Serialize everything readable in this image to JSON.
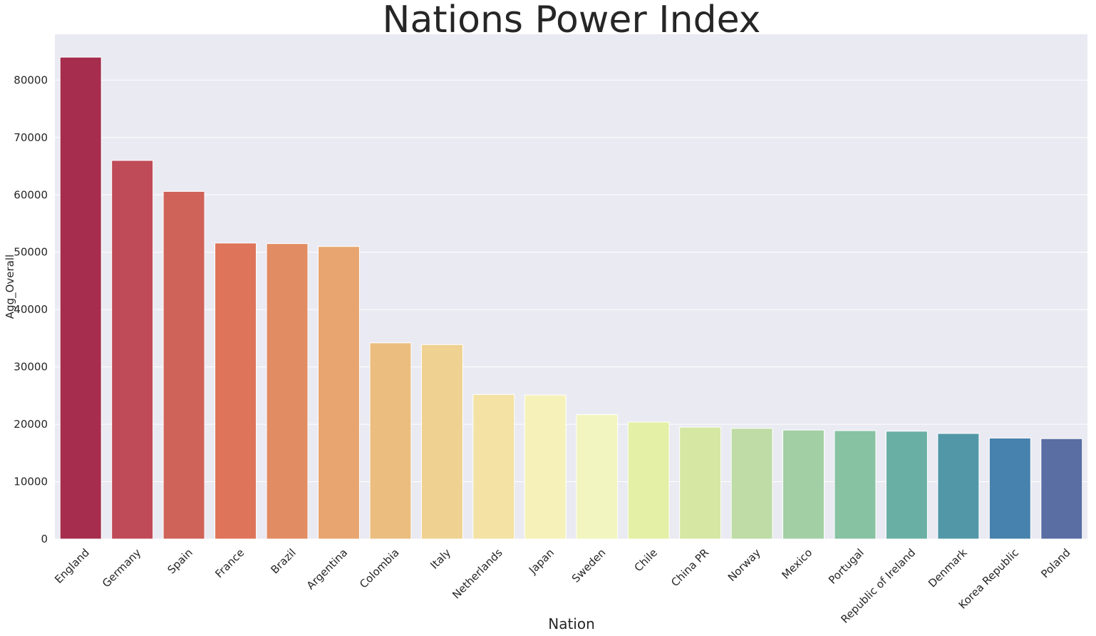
{
  "chart_data": {
    "type": "bar",
    "title": "Nations Power Index",
    "xlabel": "Nation",
    "ylabel": "Agg_Overall",
    "ylim": [
      0,
      88000
    ],
    "yticks": [
      0,
      10000,
      20000,
      30000,
      40000,
      50000,
      60000,
      70000,
      80000
    ],
    "grid": "horizontal",
    "background_color": "#eaeaf2",
    "categories": [
      "England",
      "Germany",
      "Spain",
      "France",
      "Brazil",
      "Argentina",
      "Colombia",
      "Italy",
      "Netherlands",
      "Japan",
      "Sweden",
      "Chile",
      "China PR",
      "Norway",
      "Mexico",
      "Portugal",
      "Republic of Ireland",
      "Denmark",
      "Korea Republic",
      "Poland"
    ],
    "values": [
      84000,
      66000,
      60600,
      51600,
      51500,
      51000,
      34200,
      33900,
      25200,
      25100,
      21700,
      20400,
      19500,
      19300,
      19000,
      18900,
      18800,
      18400,
      17600,
      17500
    ],
    "colors": [
      "#a62d4d",
      "#bf4a58",
      "#cf635a",
      "#de7459",
      "#e28c63",
      "#e8a56f",
      "#ebbe7f",
      "#efd192",
      "#f3e2a4",
      "#f6f1b9",
      "#f2f5bf",
      "#e4f0a5",
      "#d5e7a2",
      "#bfdca7",
      "#a2cfa3",
      "#87c2a3",
      "#6aafa4",
      "#5197a8",
      "#4781ae",
      "#5a6ea4"
    ]
  }
}
